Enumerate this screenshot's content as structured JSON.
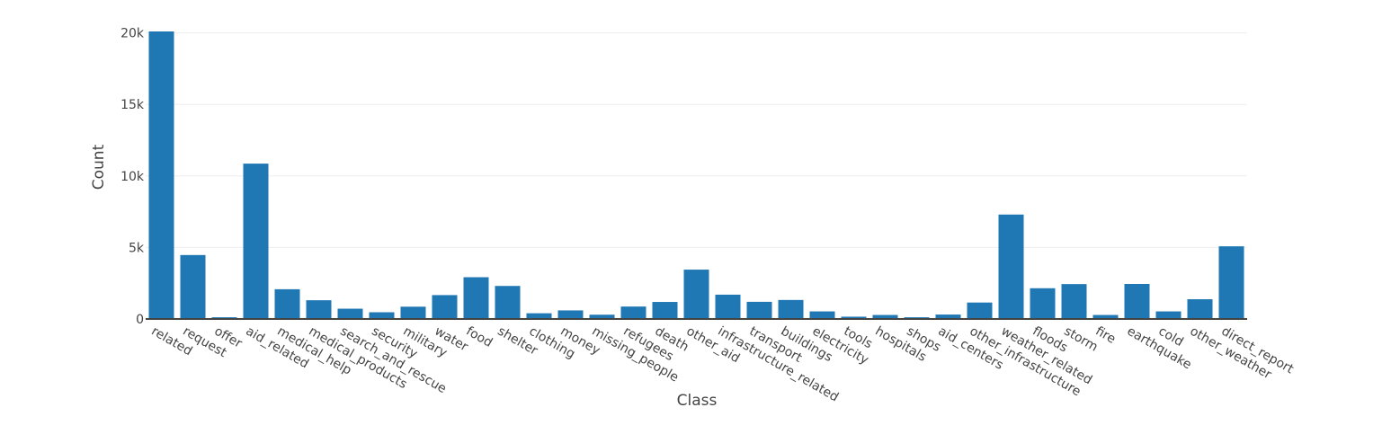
{
  "chart_data": {
    "type": "bar",
    "title": "",
    "xlabel": "Class",
    "ylabel": "Count",
    "ylim": [
      0,
      20100
    ],
    "yticks": [
      0,
      5000,
      10000,
      15000,
      20000
    ],
    "ytick_labels": [
      "0",
      "5k",
      "10k",
      "15k",
      "20k"
    ],
    "grid": "horizontal",
    "bar_color": "#1f77b4",
    "categories": [
      "related",
      "request",
      "offer",
      "aid_related",
      "medical_help",
      "medical_products",
      "search_and_rescue",
      "security",
      "military",
      "water",
      "food",
      "shelter",
      "clothing",
      "money",
      "missing_people",
      "refugees",
      "death",
      "other_aid",
      "infrastructure_related",
      "transport",
      "buildings",
      "electricity",
      "tools",
      "hospitals",
      "shops",
      "aid_centers",
      "other_infrastructure",
      "weather_related",
      "floods",
      "storm",
      "fire",
      "earthquake",
      "cold",
      "other_weather",
      "direct_report"
    ],
    "values": [
      20100,
      4470,
      120,
      10860,
      2080,
      1310,
      720,
      470,
      860,
      1670,
      2920,
      2310,
      400,
      600,
      300,
      870,
      1190,
      3450,
      1700,
      1200,
      1330,
      530,
      160,
      280,
      120,
      310,
      1150,
      7300,
      2150,
      2440,
      280,
      2450,
      530,
      1380,
      5080
    ]
  }
}
